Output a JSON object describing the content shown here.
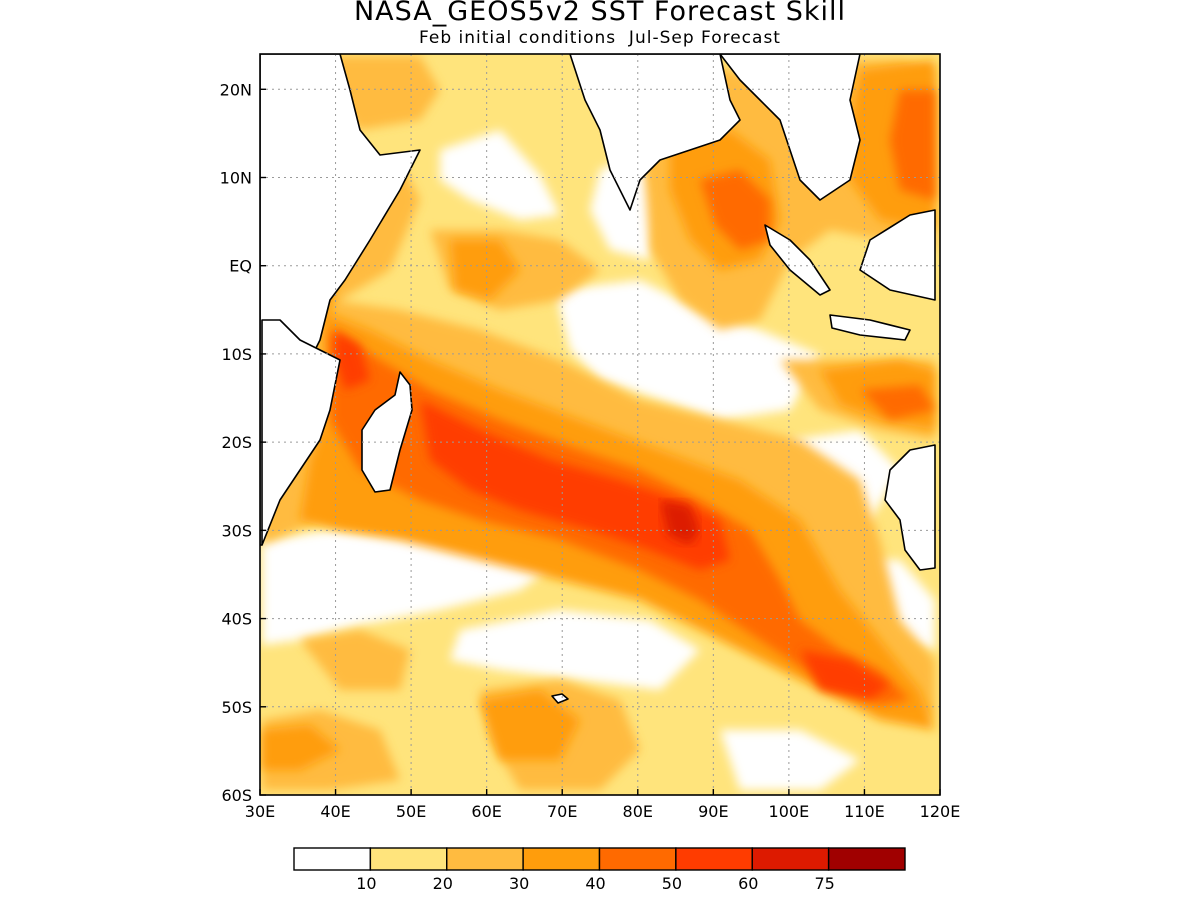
{
  "title": "NASA_GEOS5v2 SST Forecast Skill",
  "subtitle": "Feb initial conditions  Jul-Sep Forecast",
  "map": {
    "lon_range": [
      30,
      120
    ],
    "lat_range": [
      -60,
      24
    ],
    "x_ticks": [
      {
        "value": 30,
        "label": "30E"
      },
      {
        "value": 40,
        "label": "40E"
      },
      {
        "value": 50,
        "label": "50E"
      },
      {
        "value": 60,
        "label": "60E"
      },
      {
        "value": 70,
        "label": "70E"
      },
      {
        "value": 80,
        "label": "80E"
      },
      {
        "value": 90,
        "label": "90E"
      },
      {
        "value": 100,
        "label": "100E"
      },
      {
        "value": 110,
        "label": "110E"
      },
      {
        "value": 120,
        "label": "120E"
      }
    ],
    "y_ticks": [
      {
        "value": 20,
        "label": "20N"
      },
      {
        "value": 10,
        "label": "10N"
      },
      {
        "value": 0,
        "label": "EQ"
      },
      {
        "value": -10,
        "label": "10S"
      },
      {
        "value": -20,
        "label": "20S"
      },
      {
        "value": -30,
        "label": "30S"
      },
      {
        "value": -40,
        "label": "40S"
      },
      {
        "value": -50,
        "label": "50S"
      },
      {
        "value": -60,
        "label": "60S"
      }
    ],
    "gridlines": "dotted"
  },
  "colorbar": {
    "colors": [
      "#ffffff",
      "#ffe47c",
      "#ffbb40",
      "#ff9d0c",
      "#ff6a00",
      "#ff3c00",
      "#dd1a00",
      "#a00000"
    ],
    "boundary_labels": [
      "10",
      "20",
      "30",
      "40",
      "50",
      "60",
      "75"
    ]
  }
}
